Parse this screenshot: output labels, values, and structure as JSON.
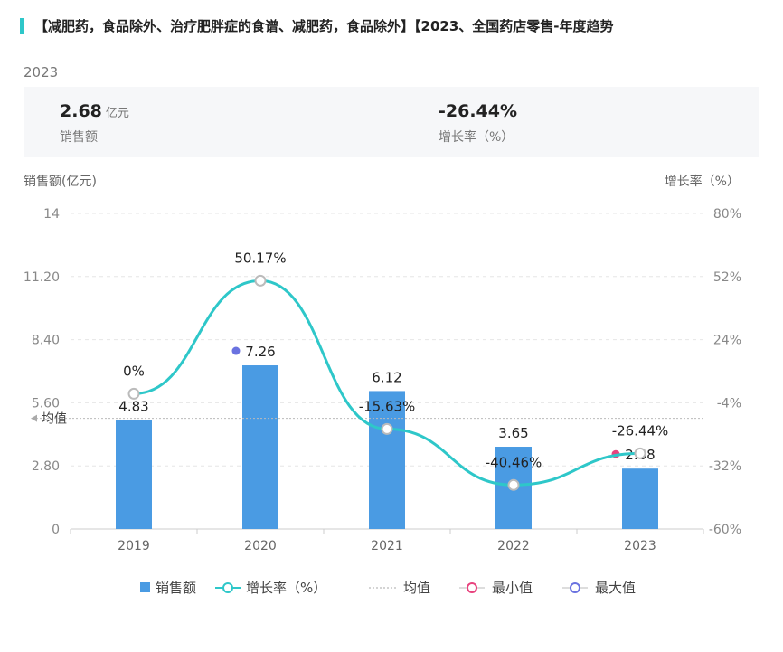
{
  "title": "【减肥药，食品除外、治疗肥胖症的食谱、减肥药，食品除外】【2023、全国药店零售-年度趋势",
  "year": "2023",
  "summary": {
    "sales": {
      "value": "2.68",
      "unit": "亿元",
      "label": "销售额"
    },
    "growth": {
      "value": "-26.44%",
      "label": "增长率（%）"
    }
  },
  "colors": {
    "bar": "#4a9be3",
    "line": "#2ec7c9",
    "min": "#e8437e",
    "max": "#6a72e0",
    "accent": "#2ec7c9"
  },
  "chart_data": {
    "type": "bar",
    "categories": [
      "2019",
      "2020",
      "2021",
      "2022",
      "2023"
    ],
    "series": [
      {
        "name": "销售额",
        "type": "bar",
        "values": [
          4.83,
          7.26,
          6.12,
          3.65,
          2.68
        ],
        "labels": [
          "4.83",
          "7.26",
          "6.12",
          "3.65",
          "2.68"
        ]
      },
      {
        "name": "增长率（%）",
        "type": "line",
        "values": [
          0,
          50.17,
          -15.63,
          -40.46,
          -26.44
        ],
        "labels": [
          "0%",
          "50.17%",
          "-15.63%",
          "-40.46%",
          "-26.44%"
        ]
      }
    ],
    "y_left": {
      "label": "销售额(亿元)",
      "ticks": [
        "0",
        "2.80",
        "5.60",
        "8.40",
        "11.20",
        "14"
      ],
      "range": [
        0,
        14
      ]
    },
    "y_right": {
      "label": "增长率（%）",
      "ticks": [
        "-60%",
        "-32%",
        "-4%",
        "24%",
        "52%",
        "80%"
      ],
      "range": [
        -60,
        80
      ]
    },
    "average": {
      "label": "均值",
      "value": 4.908
    },
    "max_marker": {
      "category": "2020",
      "value": 7.26
    },
    "min_marker": {
      "category": "2023",
      "value": 2.68
    },
    "legend": [
      "销售额",
      "增长率（%）",
      "均值",
      "最小值",
      "最大值"
    ],
    "legend_position": "bottom",
    "grid": true
  }
}
